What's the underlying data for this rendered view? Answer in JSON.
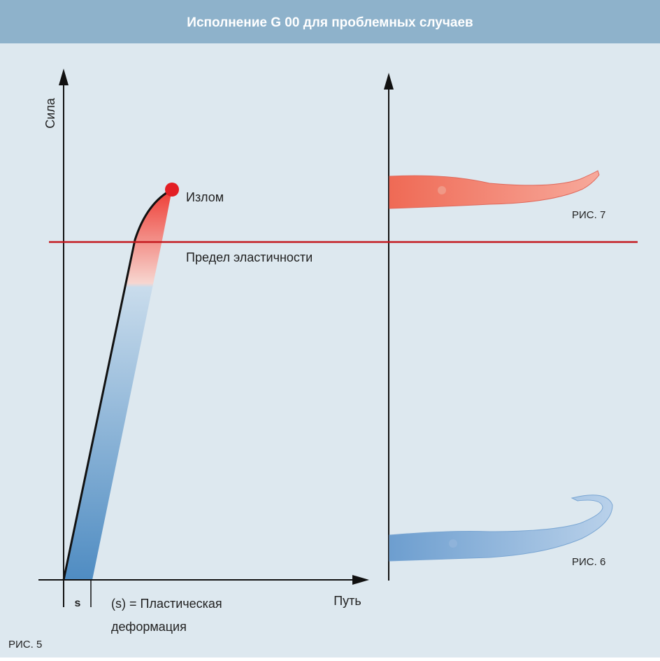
{
  "header": {
    "title": "Исполнение G 00 для проблемных случаев"
  },
  "diagram": {
    "y_axis_label": "Сила",
    "x_axis_label": "Путь",
    "break_label": "Излом",
    "elastic_limit_label": "Предел эластичности",
    "s_label": "s",
    "plastic_label": [
      "(s) = Пластическая",
      "деформация"
    ],
    "figures": [
      "РИС. 5",
      "РИС. 7",
      "РИС. 6"
    ]
  }
}
